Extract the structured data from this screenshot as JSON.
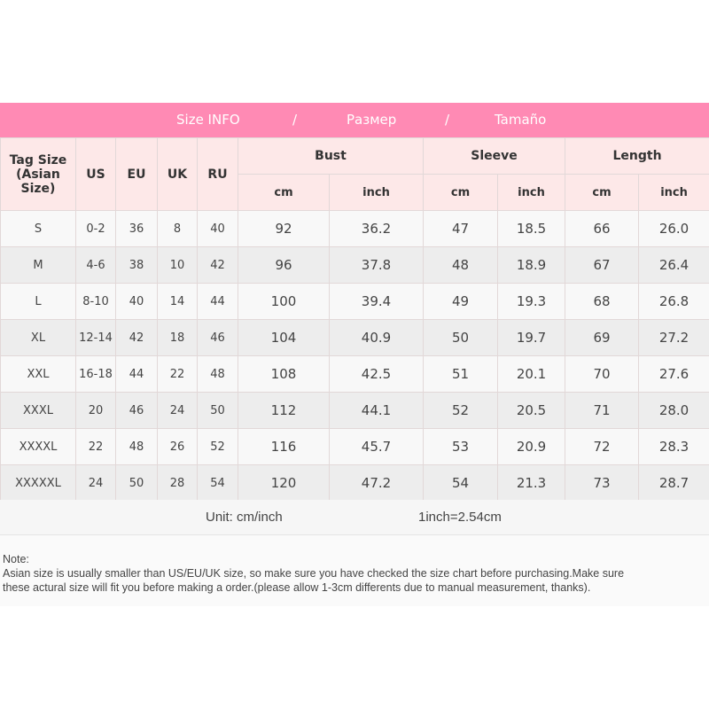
{
  "banner": {
    "size_info": "Size INFO",
    "sep1": "/",
    "russian": "Размер",
    "sep2": "/",
    "spanish": "Tamaño"
  },
  "headers": {
    "tag_size": "Tag Size",
    "tag_size_sub": "(Asian Size)",
    "us": "US",
    "eu": "EU",
    "uk": "UK",
    "ru": "RU",
    "bust": "Bust",
    "sleeve": "Sleeve",
    "length": "Length",
    "cm": "cm",
    "inch": "inch"
  },
  "rows": [
    [
      "S",
      "0-2",
      "36",
      "8",
      "40",
      "92",
      "36.2",
      "47",
      "18.5",
      "66",
      "26.0"
    ],
    [
      "M",
      "4-6",
      "38",
      "10",
      "42",
      "96",
      "37.8",
      "48",
      "18.9",
      "67",
      "26.4"
    ],
    [
      "L",
      "8-10",
      "40",
      "14",
      "44",
      "100",
      "39.4",
      "49",
      "19.3",
      "68",
      "26.8"
    ],
    [
      "XL",
      "12-14",
      "42",
      "18",
      "46",
      "104",
      "40.9",
      "50",
      "19.7",
      "69",
      "27.2"
    ],
    [
      "XXL",
      "16-18",
      "44",
      "22",
      "48",
      "108",
      "42.5",
      "51",
      "20.1",
      "70",
      "27.6"
    ],
    [
      "XXXL",
      "20",
      "46",
      "24",
      "50",
      "112",
      "44.1",
      "52",
      "20.5",
      "71",
      "28.0"
    ],
    [
      "XXXXL",
      "22",
      "48",
      "26",
      "52",
      "116",
      "45.7",
      "53",
      "20.9",
      "72",
      "28.3"
    ],
    [
      "XXXXXL",
      "24",
      "50",
      "28",
      "54",
      "120",
      "47.2",
      "54",
      "21.3",
      "73",
      "28.7"
    ]
  ],
  "unit": {
    "label": "Unit: cm/inch",
    "conversion": "1inch=2.54cm"
  },
  "note": {
    "title": "Note:",
    "line1": "Asian size is usually smaller than US/EU/UK size, so make sure you have checked the size chart before purchasing.Make sure",
    "line2": "these actural size will fit you before making a order.(please allow 1-3cm differents due to manual measurement, thanks)."
  },
  "colors": {
    "banner": "#ff8ab4",
    "header_bg": "#fde8e8"
  }
}
